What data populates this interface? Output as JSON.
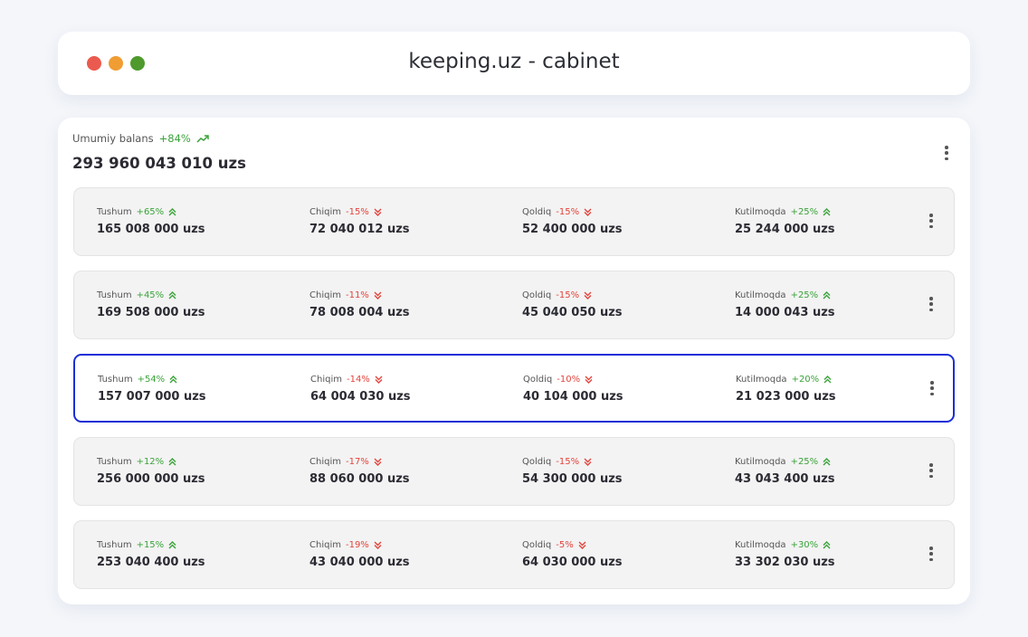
{
  "window": {
    "title": "keeping.uz - cabinet"
  },
  "balance": {
    "label": "Umumiy balans",
    "change": "+84%",
    "amount": "293 960 043 010 uzs"
  },
  "selected_row": 2,
  "rows": [
    [
      {
        "label": "Tushum",
        "change": "+65%",
        "amount": "165 008 000 uzs"
      },
      {
        "label": "Chiqim",
        "change": "-15%",
        "amount": "72 040 012 uzs"
      },
      {
        "label": "Qoldiq",
        "change": "-15%",
        "amount": "52 400 000 uzs"
      },
      {
        "label": "Kutilmoqda",
        "change": "+25%",
        "amount": "25 244 000 uzs"
      }
    ],
    [
      {
        "label": "Tushum",
        "change": "+45%",
        "amount": "169 508 000 uzs"
      },
      {
        "label": "Chiqim",
        "change": "-11%",
        "amount": "78 008 004 uzs"
      },
      {
        "label": "Qoldiq",
        "change": "-15%",
        "amount": "45 040 050 uzs"
      },
      {
        "label": "Kutilmoqda",
        "change": "+25%",
        "amount": "14 000 043 uzs"
      }
    ],
    [
      {
        "label": "Tushum",
        "change": "+54%",
        "amount": "157 007 000 uzs"
      },
      {
        "label": "Chiqim",
        "change": "-14%",
        "amount": "64 004 030 uzs"
      },
      {
        "label": "Qoldiq",
        "change": "-10%",
        "amount": "40 104 000 uzs"
      },
      {
        "label": "Kutilmoqda",
        "change": "+20%",
        "amount": "21 023 000 uzs"
      }
    ],
    [
      {
        "label": "Tushum",
        "change": "+12%",
        "amount": "256 000 000 uzs"
      },
      {
        "label": "Chiqim",
        "change": "-17%",
        "amount": "88 060 000 uzs"
      },
      {
        "label": "Qoldiq",
        "change": "-15%",
        "amount": "54 300 000 uzs"
      },
      {
        "label": "Kutilmoqda",
        "change": "+25%",
        "amount": "43 043 400 uzs"
      }
    ],
    [
      {
        "label": "Tushum",
        "change": "+15%",
        "amount": "253 040 400 uzs"
      },
      {
        "label": "Chiqim",
        "change": "-19%",
        "amount": "43 040 000 uzs"
      },
      {
        "label": "Qoldiq",
        "change": "-5%",
        "amount": "64 030 000 uzs"
      },
      {
        "label": "Kutilmoqda",
        "change": "+30%",
        "amount": "33 302 030 uzs"
      }
    ]
  ]
}
